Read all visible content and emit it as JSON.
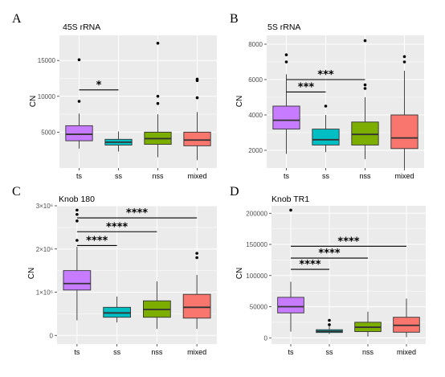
{
  "figure": {
    "background": "#ffffff",
    "panel_bg": "#ebebeb"
  },
  "chart_data": [
    {
      "type": "box",
      "panel": "A",
      "title": "45S rRNA",
      "xlabel": "",
      "ylabel": "CN",
      "ylim": [
        0,
        18500
      ],
      "yticks": [
        5000,
        10000,
        15000
      ],
      "ytick_labels": [
        "5000",
        "10000",
        "15000"
      ],
      "grid": true,
      "categories": [
        "ts",
        "ss",
        "nss",
        "mixed"
      ],
      "colors": [
        "#c77cff",
        "#00bfc4",
        "#7cae00",
        "#f8766d"
      ],
      "boxes": [
        {
          "whisker_low": 2700,
          "q1": 3800,
          "median": 4700,
          "q3": 5900,
          "whisker_high": 7600,
          "outliers": [
            9300,
            15100
          ]
        },
        {
          "whisker_low": 2300,
          "q1": 3200,
          "median": 3600,
          "q3": 4000,
          "whisker_high": 5100,
          "outliers": []
        },
        {
          "whisker_low": 1500,
          "q1": 3300,
          "median": 4100,
          "q3": 5000,
          "whisker_high": 7500,
          "outliers": [
            9000,
            10000,
            17400
          ]
        },
        {
          "whisker_low": 1100,
          "q1": 3100,
          "median": 3900,
          "q3": 5000,
          "whisker_high": 7800,
          "outliers": [
            9800,
            12200,
            12400
          ]
        }
      ],
      "significance": [
        {
          "from": 0,
          "to": 1,
          "y": 10900,
          "label": "*"
        }
      ]
    },
    {
      "type": "box",
      "panel": "B",
      "title": "5S rRNA",
      "xlabel": "",
      "ylabel": "CN",
      "ylim": [
        1000,
        8500
      ],
      "yticks": [
        2000,
        4000,
        6000,
        8000
      ],
      "ytick_labels": [
        "2000",
        "4000",
        "6000",
        "8000"
      ],
      "grid": true,
      "categories": [
        "ts",
        "ss",
        "nss",
        "mixed"
      ],
      "colors": [
        "#c77cff",
        "#00bfc4",
        "#7cae00",
        "#f8766d"
      ],
      "boxes": [
        {
          "whisker_low": 1800,
          "q1": 3200,
          "median": 3700,
          "q3": 4500,
          "whisker_high": 6300,
          "outliers": [
            7000,
            7400
          ]
        },
        {
          "whisker_low": 1900,
          "q1": 2300,
          "median": 2600,
          "q3": 3200,
          "whisker_high": 4000,
          "outliers": [
            4500
          ]
        },
        {
          "whisker_low": 1500,
          "q1": 2300,
          "median": 2900,
          "q3": 3600,
          "whisker_high": 5000,
          "outliers": [
            5500,
            5700,
            8200
          ]
        },
        {
          "whisker_low": 1000,
          "q1": 2100,
          "median": 2700,
          "q3": 4000,
          "whisker_high": 6500,
          "outliers": [
            7000,
            7300
          ]
        }
      ],
      "significance": [
        {
          "from": 0,
          "to": 1,
          "y": 5300,
          "label": "***"
        },
        {
          "from": 0,
          "to": 2,
          "y": 6000,
          "label": "***"
        }
      ]
    },
    {
      "type": "box",
      "panel": "C",
      "title": "Knob 180",
      "xlabel": "",
      "ylabel": "CN",
      "ylim": [
        -200000,
        3000000
      ],
      "yticks": [
        0,
        1000000,
        2000000,
        3000000
      ],
      "ytick_labels": [
        "0",
        "1×10⁶",
        "2×10⁶",
        "3×10⁶"
      ],
      "grid": true,
      "categories": [
        "ts",
        "ss",
        "nss",
        "mixed"
      ],
      "colors": [
        "#c77cff",
        "#00bfc4",
        "#7cae00",
        "#f8766d"
      ],
      "boxes": [
        {
          "whisker_low": 350000,
          "q1": 1050000,
          "median": 1200000,
          "q3": 1500000,
          "whisker_high": 2050000,
          "outliers": [
            2200000,
            2650000,
            2800000,
            2900000
          ]
        },
        {
          "whisker_low": 300000,
          "q1": 420000,
          "median": 520000,
          "q3": 650000,
          "whisker_high": 900000,
          "outliers": []
        },
        {
          "whisker_low": 150000,
          "q1": 420000,
          "median": 600000,
          "q3": 800000,
          "whisker_high": 1250000,
          "outliers": []
        },
        {
          "whisker_low": 150000,
          "q1": 400000,
          "median": 650000,
          "q3": 950000,
          "whisker_high": 1400000,
          "outliers": [
            1800000,
            1900000
          ]
        }
      ],
      "significance": [
        {
          "from": 0,
          "to": 1,
          "y": 2080000,
          "label": "****"
        },
        {
          "from": 0,
          "to": 2,
          "y": 2400000,
          "label": "****"
        },
        {
          "from": 0,
          "to": 3,
          "y": 2720000,
          "label": "****"
        }
      ]
    },
    {
      "type": "box",
      "panel": "D",
      "title": "Knob TR1",
      "xlabel": "",
      "ylabel": "CN",
      "ylim": [
        -10000,
        212000
      ],
      "yticks": [
        0,
        50000,
        100000,
        150000,
        200000
      ],
      "ytick_labels": [
        "0",
        "50000",
        "100000",
        "150000",
        "200000"
      ],
      "grid": true,
      "categories": [
        "ts",
        "ss",
        "nss",
        "mixed"
      ],
      "colors": [
        "#c77cff",
        "#00bfc4",
        "#7cae00",
        "#f8766d"
      ],
      "boxes": [
        {
          "whisker_low": 10000,
          "q1": 40000,
          "median": 50000,
          "q3": 65000,
          "whisker_high": 90000,
          "outliers": [
            205000
          ]
        },
        {
          "whisker_low": 6000,
          "q1": 8500,
          "median": 10500,
          "q3": 13000,
          "whisker_high": 18000,
          "outliers": [
            21000,
            28000
          ]
        },
        {
          "whisker_low": 2000,
          "q1": 10000,
          "median": 17000,
          "q3": 25000,
          "whisker_high": 42000,
          "outliers": []
        },
        {
          "whisker_low": 1000,
          "q1": 9000,
          "median": 20000,
          "q3": 33000,
          "whisker_high": 63000,
          "outliers": []
        }
      ],
      "significance": [
        {
          "from": 0,
          "to": 1,
          "y": 110000,
          "label": "****"
        },
        {
          "from": 0,
          "to": 2,
          "y": 128000,
          "label": "****"
        },
        {
          "from": 0,
          "to": 3,
          "y": 147000,
          "label": "****"
        }
      ]
    }
  ]
}
